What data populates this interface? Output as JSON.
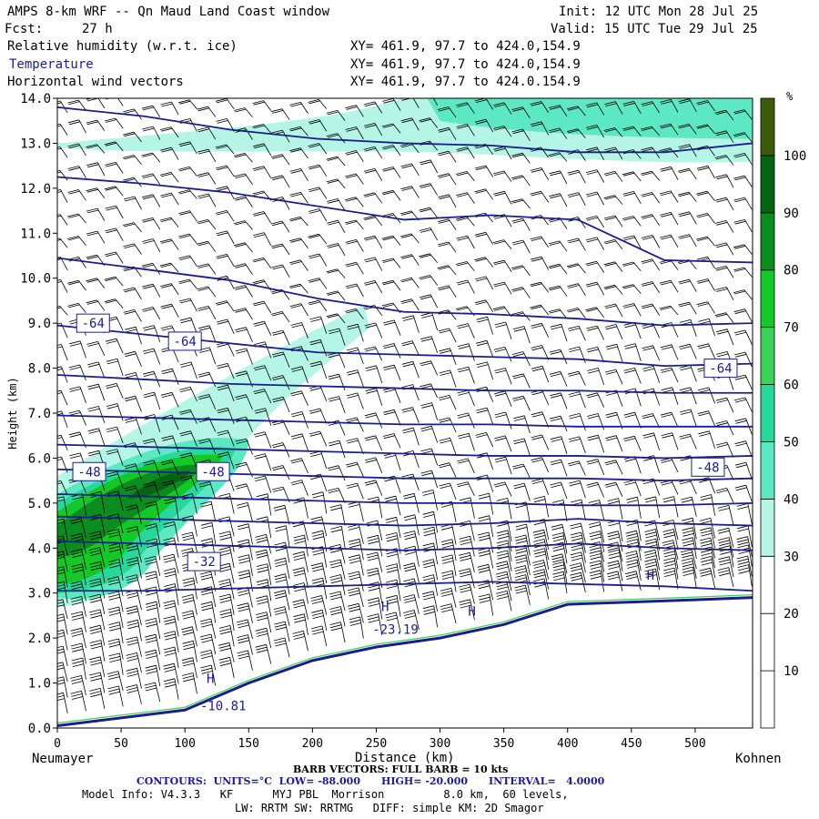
{
  "header": {
    "title": "AMPS 8-km WRF -- Qn Maud Land Coast window",
    "init": "Init: 12 UTC Mon 28 Jul 25",
    "fcst_label": "Fcst:",
    "fcst_value": "27 h",
    "valid": "Valid: 15 UTC Tue 29 Jul 25",
    "fields": [
      {
        "name": "Relative humidity (w.r.t. ice)",
        "xy": "XY= 461.9, 97.7 to 424.0,154.9"
      },
      {
        "name": "Temperature",
        "xy": "XY= 461.9, 97.7 to 424.0,154.9"
      },
      {
        "name": "Horizontal wind vectors",
        "xy": "XY= 461.9, 97.7 to 424.0.154.9"
      }
    ]
  },
  "chart_data": {
    "type": "heatmap",
    "ylabel": "Height (km)",
    "xlabel": "Distance (km)",
    "x_start_label": "Neumayer",
    "x_end_label": "Kohnen",
    "xlim": [
      0,
      545
    ],
    "ylim": [
      0.0,
      14.0
    ],
    "x_ticks": [
      0,
      50,
      100,
      150,
      200,
      250,
      300,
      350,
      400,
      450,
      500
    ],
    "y_ticks": [
      "0.0",
      "1.0",
      "2.0",
      "3.0",
      "4.0",
      "5.0",
      "6.0",
      "7.0",
      "8.0",
      "9.0",
      "10.0",
      "11.0",
      "12.0",
      "13.0",
      "14.0"
    ],
    "colorbar": {
      "unit": "%",
      "labels": [
        "10",
        "20",
        "30",
        "40",
        "50",
        "60",
        "70",
        "80",
        "90",
        "100"
      ],
      "colors": [
        "#ffffff",
        "#ffffff",
        "#ffffff",
        "#b4f5e6",
        "#5ce8c2",
        "#28d89a",
        "#3cd25a",
        "#14c828",
        "#0a8c1e",
        "#056414",
        "#3c5a0a"
      ]
    },
    "temperature_labels": [
      {
        "text": "-64",
        "x": 28,
        "y": 9.0
      },
      {
        "text": "-64",
        "x": 100,
        "y": 8.6
      },
      {
        "text": "-64",
        "x": 520,
        "y": 8.0
      },
      {
        "text": "-48",
        "x": 25,
        "y": 5.7
      },
      {
        "text": "-48",
        "x": 122,
        "y": 5.7
      },
      {
        "text": "-48",
        "x": 510,
        "y": 5.8
      },
      {
        "text": "-32",
        "x": 115,
        "y": 3.7
      },
      {
        "text": "-23.19",
        "x": 265,
        "y": 2.2
      },
      {
        "text": "-10.81",
        "x": 130,
        "y": 0.5
      }
    ],
    "isotherms_km": [
      [
        13.8,
        13.6,
        13.3,
        13.1,
        13.0,
        12.95,
        12.8,
        12.8,
        13.0
      ],
      [
        12.25,
        12.1,
        11.9,
        11.6,
        11.3,
        11.4,
        11.3,
        10.4,
        10.35
      ],
      [
        10.45,
        10.2,
        9.95,
        9.55,
        9.25,
        9.2,
        9.1,
        8.95,
        9.0
      ],
      [
        8.95,
        8.75,
        8.55,
        8.35,
        8.3,
        8.25,
        8.2,
        8.05,
        8.1
      ],
      [
        7.85,
        7.75,
        7.65,
        7.6,
        7.55,
        7.5,
        7.5,
        7.45,
        7.45
      ],
      [
        6.95,
        6.9,
        6.85,
        6.8,
        6.75,
        6.75,
        6.7,
        6.7,
        6.7
      ],
      [
        6.3,
        6.25,
        6.2,
        6.15,
        6.1,
        6.05,
        6.05,
        6.0,
        6.05
      ],
      [
        5.75,
        5.7,
        5.65,
        5.6,
        5.55,
        5.55,
        5.55,
        5.5,
        5.55
      ],
      [
        5.2,
        5.15,
        5.1,
        5.05,
        5.0,
        5.0,
        4.95,
        4.95,
        5.0
      ],
      [
        4.7,
        4.65,
        4.6,
        4.55,
        4.5,
        4.55,
        4.65,
        4.55,
        4.5
      ],
      [
        4.15,
        4.1,
        4.05,
        4.0,
        3.95,
        4.0,
        4.1,
        4.0,
        3.95
      ],
      [
        3.05,
        3.05,
        3.1,
        3.15,
        3.2,
        3.25,
        3.2,
        3.15,
        3.05
      ]
    ],
    "terrain_km": [
      {
        "x": 0,
        "h": 0.05
      },
      {
        "x": 100,
        "h": 0.4
      },
      {
        "x": 150,
        "h": 1.0
      },
      {
        "x": 200,
        "h": 1.5
      },
      {
        "x": 250,
        "h": 1.8
      },
      {
        "x": 300,
        "h": 2.0
      },
      {
        "x": 350,
        "h": 2.3
      },
      {
        "x": 400,
        "h": 2.75
      },
      {
        "x": 450,
        "h": 2.8
      },
      {
        "x": 500,
        "h": 2.85
      },
      {
        "x": 545,
        "h": 2.9
      }
    ],
    "rh_regions": [
      {
        "band": "upper",
        "x_range": [
          285,
          545
        ],
        "y_range": [
          12.7,
          14.0
        ],
        "pct": 35
      },
      {
        "band": "plume",
        "x_range": [
          0,
          240
        ],
        "y_range": [
          2.5,
          9.3
        ],
        "pct_max": 100
      }
    ],
    "wind_barb_full_kts": 10,
    "H_markers": [
      {
        "x": 257,
        "y": 2.6
      },
      {
        "x": 325,
        "y": 2.5
      },
      {
        "x": 465,
        "y": 3.3
      },
      {
        "x": 120,
        "y": 1.0
      }
    ]
  },
  "footer": {
    "barb": "BARB VECTORS: FULL BARB = 10 kts",
    "contours": "CONTOURS:  UNITS=°C  LOW= -88.000      HIGH= -20.000      INTERVAL=   4.0000",
    "model_info": "Model Info: V4.3.3   KF      MYJ PBL  Morrison         8.0 km,  60 levels,",
    "model_info2": "LW: RRTM SW: RRTMG   DIFF: simple KM: 2D Smagor"
  }
}
